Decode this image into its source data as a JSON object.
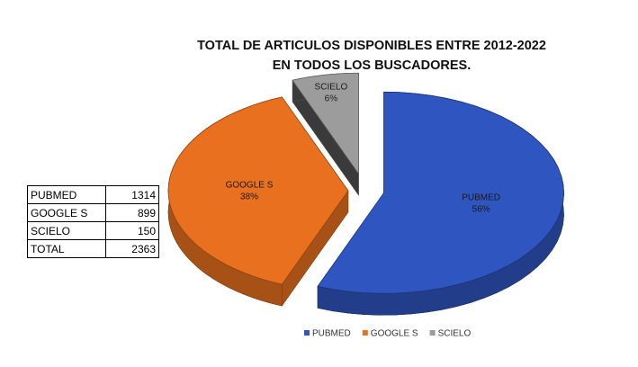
{
  "chart_data": {
    "type": "pie",
    "title": "TOTAL DE ARTICULOS DISPONIBLES ENTRE 2012-2022 EN TODOS LOS BUSCADORES.",
    "categories": [
      "PUBMED",
      "GOOGLE S",
      "SCIELO"
    ],
    "values": [
      56,
      38,
      6
    ],
    "value_labels": [
      "56%",
      "38%",
      "6%"
    ],
    "colors": [
      "#2f55c0",
      "#e8701f",
      "#9c9c9c"
    ],
    "legend": "bottom"
  },
  "table": {
    "rows": [
      [
        "PUBMED",
        "1314"
      ],
      [
        "GOOGLE S",
        "899"
      ],
      [
        "SCIELO",
        "150"
      ],
      [
        "TOTAL",
        "2363"
      ]
    ]
  }
}
